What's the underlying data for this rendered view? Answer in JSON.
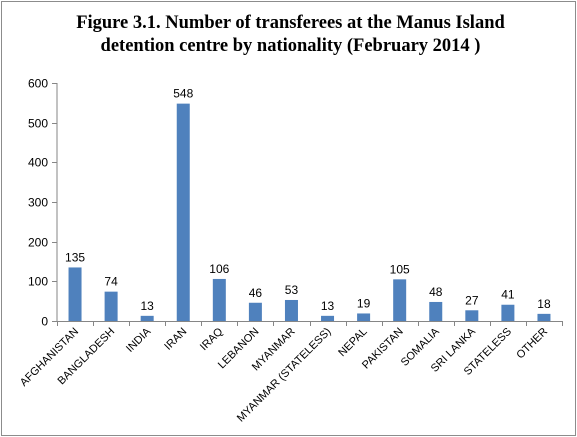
{
  "chart_data": {
    "type": "bar",
    "title_lines": [
      "Figure 3.1. Number of transferees at the Manus Island",
      "detention centre by nationality (February 2014 )"
    ],
    "categories": [
      "AFGHANISTAN",
      "BANGLADESH",
      "INDIA",
      "IRAN",
      "IRAQ",
      "LEBANON",
      "MYANMAR",
      "MYANMAR (STATELESS)",
      "NEPAL",
      "PAKISTAN",
      "SOMALIA",
      "SRI LANKA",
      "STATELESS",
      "OTHER"
    ],
    "values": [
      135,
      74,
      13,
      548,
      106,
      46,
      53,
      13,
      19,
      105,
      48,
      27,
      41,
      18
    ],
    "data_labels": [
      "135",
      "74",
      "13",
      "548",
      "106",
      "46",
      "53",
      "13",
      "19",
      "105",
      "48",
      "27",
      "41",
      "18"
    ],
    "ylim": [
      0,
      600
    ],
    "yticks": [
      0,
      100,
      200,
      300,
      400,
      500,
      600
    ],
    "ytick_labels": [
      "0",
      "100",
      "200",
      "300",
      "400",
      "500",
      "600"
    ],
    "xlabel": "",
    "ylabel": "",
    "grid": false,
    "legend": "none",
    "bar_color": "#4f81bd"
  }
}
